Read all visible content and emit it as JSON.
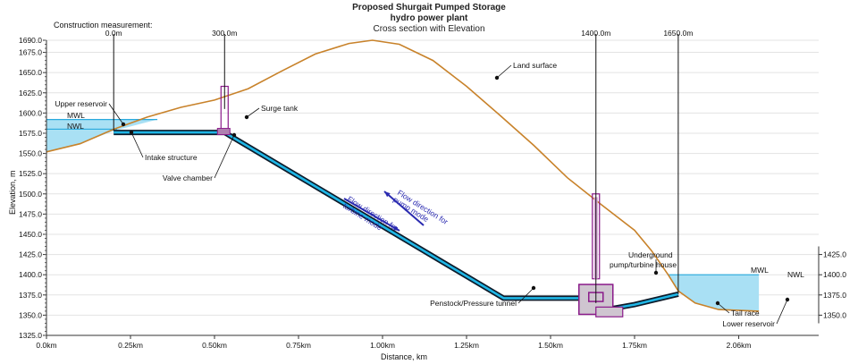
{
  "title": {
    "line1": "Proposed Shurgait Pumped Storage",
    "line2": "hydro power plant",
    "line3": "Cross section with Elevation"
  },
  "construction_label": "Construction measurement:",
  "construction_marks": [
    {
      "label": "0.0m",
      "km": 0.2
    },
    {
      "label": "300.0m",
      "km": 0.53
    },
    {
      "label": "1400.0m",
      "km": 1.635
    },
    {
      "label": "1650.0m",
      "km": 1.88
    }
  ],
  "colors": {
    "land": "#c8822a",
    "water": "#a9e0f4",
    "water_line": "#29a9dd",
    "tunnel_outer": "#0d1b2a",
    "tunnel_inner": "#1fb6e6",
    "structure": "#8a1a8a",
    "arrow": "#2a2ab0"
  },
  "chart_data": {
    "type": "diagram",
    "x_axis": {
      "label": "Distance, km",
      "range": [
        0,
        2.2
      ],
      "ticks": [
        {
          "v": 0,
          "label": "0.0km"
        },
        {
          "v": 0.25,
          "label": "0.25km"
        },
        {
          "v": 0.5,
          "label": "0.50km"
        },
        {
          "v": 0.75,
          "label": "0.75km"
        },
        {
          "v": 1.0,
          "label": "1.00km"
        },
        {
          "v": 1.25,
          "label": "1.25km"
        },
        {
          "v": 1.5,
          "label": "1.50km"
        },
        {
          "v": 1.75,
          "label": "1.75km"
        },
        {
          "v": 2.06,
          "label": "2.06km"
        }
      ]
    },
    "y_axis": {
      "label": "Elevation, m",
      "range": [
        1325,
        1690
      ],
      "ticks": [
        1325,
        1350,
        1375,
        1400,
        1425,
        1450,
        1475,
        1500,
        1525,
        1550,
        1575,
        1600,
        1625,
        1650,
        1675,
        1690
      ]
    },
    "right_axis_ticks": [
      1350,
      1375,
      1400,
      1425
    ],
    "land_surface": [
      [
        0,
        1552
      ],
      [
        0.1,
        1562
      ],
      [
        0.2,
        1580
      ],
      [
        0.3,
        1595
      ],
      [
        0.4,
        1607
      ],
      [
        0.5,
        1616
      ],
      [
        0.6,
        1630
      ],
      [
        0.7,
        1652
      ],
      [
        0.8,
        1673
      ],
      [
        0.9,
        1686
      ],
      [
        0.97,
        1690
      ],
      [
        1.05,
        1685
      ],
      [
        1.15,
        1665
      ],
      [
        1.25,
        1633
      ],
      [
        1.35,
        1597
      ],
      [
        1.45,
        1560
      ],
      [
        1.55,
        1520
      ],
      [
        1.65,
        1487
      ],
      [
        1.75,
        1455
      ],
      [
        1.8,
        1430
      ],
      [
        1.85,
        1400
      ],
      [
        1.88,
        1380
      ],
      [
        1.93,
        1365
      ],
      [
        2.0,
        1357
      ],
      [
        2.12,
        1355
      ]
    ],
    "upper_reservoir": {
      "mwl": 1592,
      "nwl": 1580,
      "x_end": 0.3
    },
    "lower_reservoir": {
      "mwl": 1400,
      "nwl": 1399,
      "x_start": 1.88,
      "x_end": 2.12
    },
    "tunnel": [
      [
        0.2,
        1576
      ],
      [
        0.53,
        1576
      ],
      [
        1.36,
        1371
      ],
      [
        1.6,
        1371
      ]
    ],
    "tailrace": [
      [
        1.64,
        1355
      ],
      [
        1.75,
        1363
      ],
      [
        1.88,
        1376
      ]
    ],
    "labels": {
      "land_surface": "Land surface",
      "upper_reservoir": "Upper reservoir",
      "mwl": "MWL",
      "nwl": "NWL",
      "intake": "Intake structure",
      "surge_tank": "Surge tank",
      "valve_chamber": "Valve chamber",
      "flow_pump": "Flow direction for pump mode",
      "flow_turbine": "Flow direction for turbine mode",
      "penstock": "Penstock/Pressure tunnel",
      "powerhouse": "Underground pump/turbine house",
      "tail_race": "Tail race",
      "lower_reservoir": "Lower reservoir"
    }
  }
}
